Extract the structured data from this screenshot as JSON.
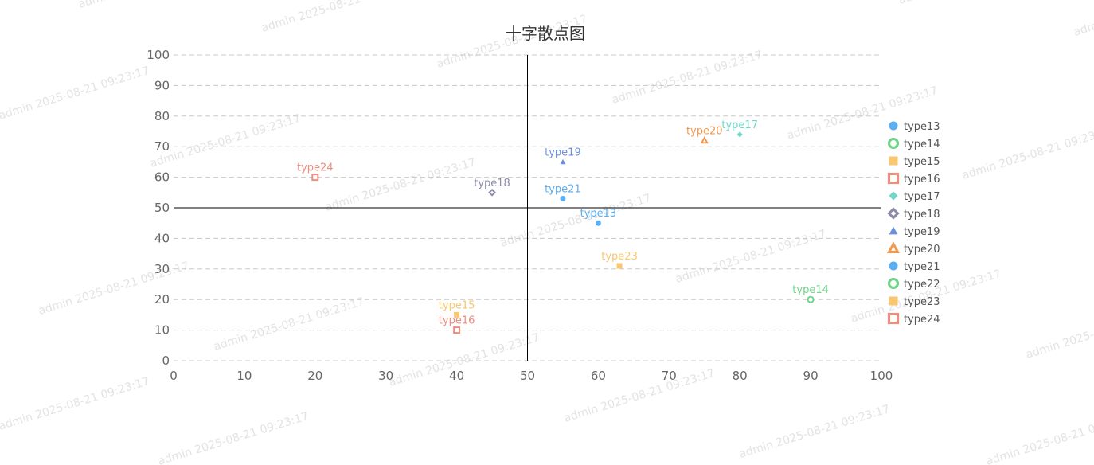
{
  "watermark_text": "admin 2025-08-21 09:23:17",
  "chart_data": {
    "type": "scatter",
    "title": "十字散点图",
    "xlim": [
      0,
      100
    ],
    "ylim": [
      0,
      100
    ],
    "x_ticks": [
      0,
      10,
      20,
      30,
      40,
      50,
      60,
      70,
      80,
      90,
      100
    ],
    "y_ticks": [
      0,
      10,
      20,
      30,
      40,
      50,
      60,
      70,
      80,
      90,
      100
    ],
    "crosshair": {
      "x": 50,
      "y": 50
    },
    "grid": "horizontal-dashed",
    "legend_position": "right",
    "series": [
      {
        "name": "type13",
        "symbol": "circle",
        "filled": true,
        "color": "#5aaef2",
        "x": 60,
        "y": 45
      },
      {
        "name": "type14",
        "symbol": "circle",
        "filled": false,
        "color": "#6fd388",
        "x": 90,
        "y": 20
      },
      {
        "name": "type15",
        "symbol": "square",
        "filled": true,
        "color": "#f8c76f",
        "x": 40,
        "y": 15
      },
      {
        "name": "type16",
        "symbol": "square",
        "filled": false,
        "color": "#ef8c7e",
        "x": 40,
        "y": 10
      },
      {
        "name": "type17",
        "symbol": "diamond",
        "filled": true,
        "color": "#6fd6c8",
        "x": 80,
        "y": 74
      },
      {
        "name": "type18",
        "symbol": "diamond",
        "filled": false,
        "color": "#8c8ca8",
        "x": 45,
        "y": 55
      },
      {
        "name": "type19",
        "symbol": "triangle",
        "filled": true,
        "color": "#6b8fd9",
        "x": 55,
        "y": 65
      },
      {
        "name": "type20",
        "symbol": "triangle",
        "filled": false,
        "color": "#f0994f",
        "x": 75,
        "y": 72
      },
      {
        "name": "type21",
        "symbol": "circle",
        "filled": true,
        "color": "#5aaef2",
        "x": 55,
        "y": 53
      },
      {
        "name": "type22",
        "symbol": "circle",
        "filled": false,
        "color": "#6fd388",
        "x": null,
        "y": null
      },
      {
        "name": "type23",
        "symbol": "square",
        "filled": true,
        "color": "#f8c76f",
        "x": 63,
        "y": 31
      },
      {
        "name": "type24",
        "symbol": "square",
        "filled": false,
        "color": "#ef8c7e",
        "x": 20,
        "y": 60
      }
    ]
  }
}
